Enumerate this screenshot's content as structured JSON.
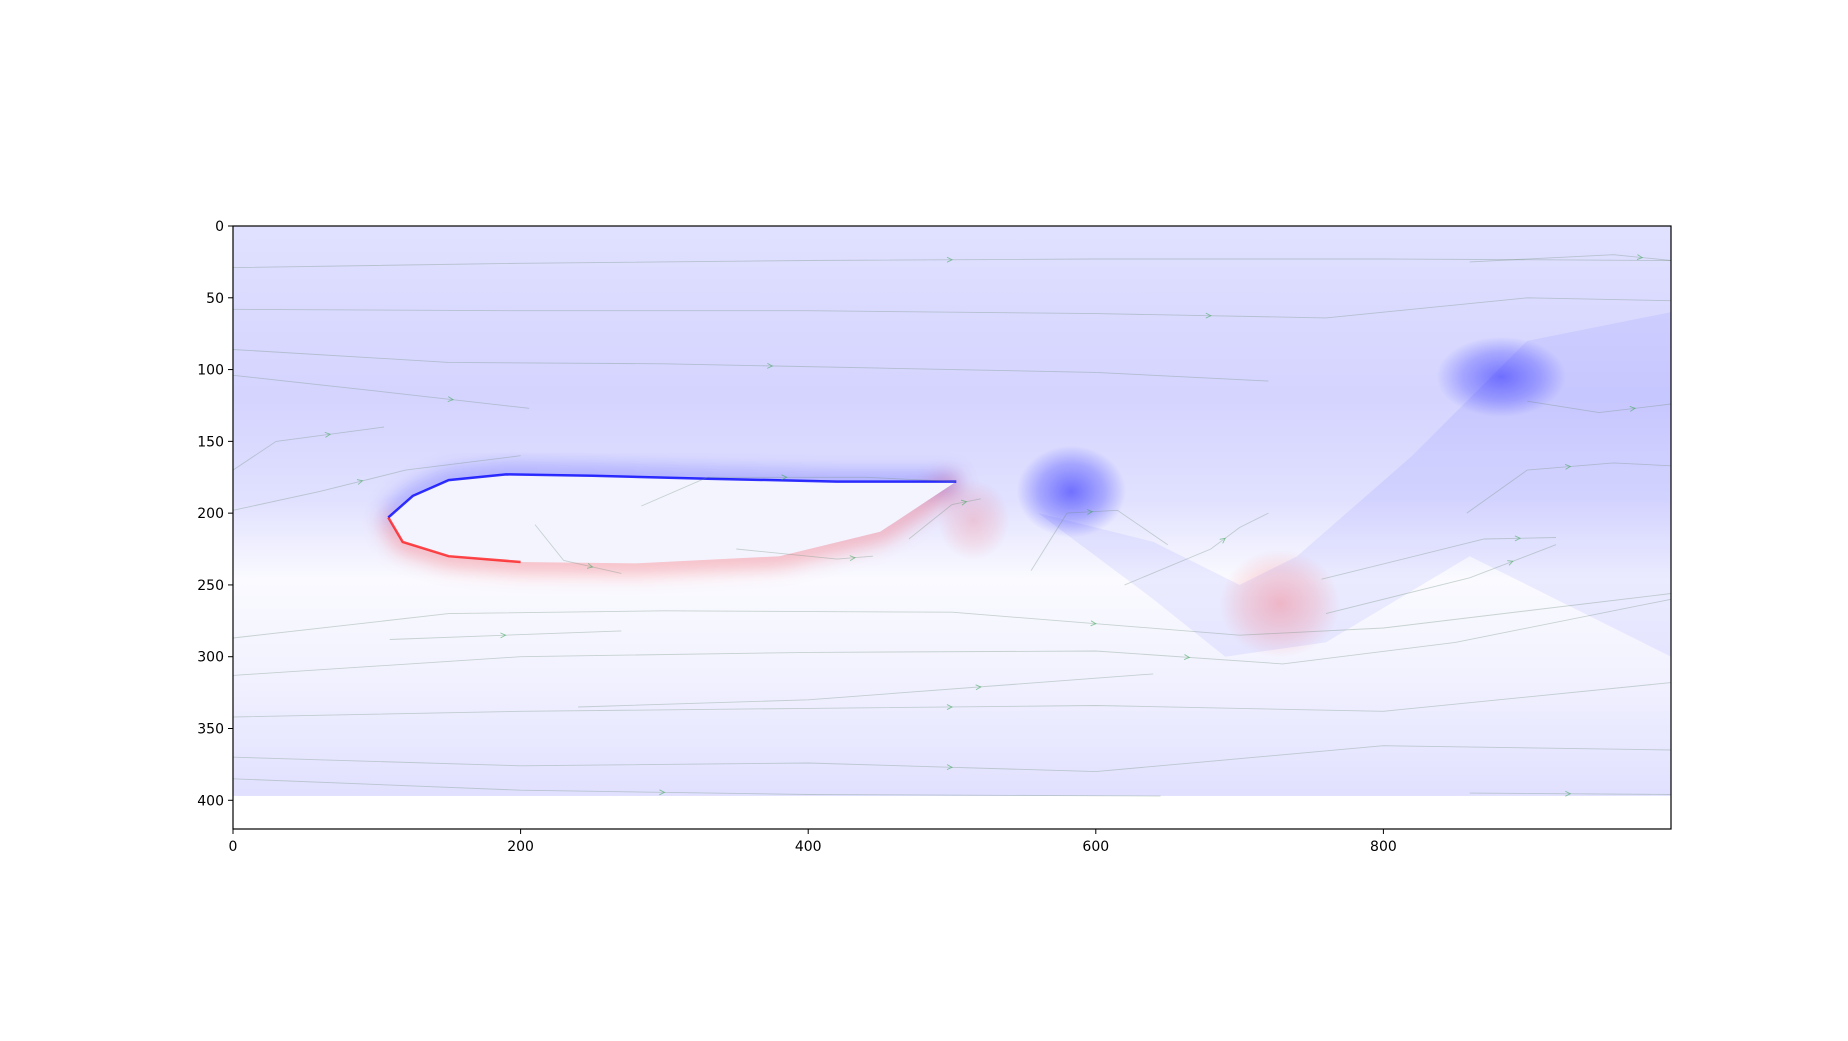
{
  "chart_data": {
    "type": "heatmap",
    "title": "",
    "xlabel": "",
    "ylabel": "",
    "xlim": [
      0,
      1000
    ],
    "ylim": [
      420,
      0
    ],
    "image_extent": {
      "x": [
        0,
        1000
      ],
      "y": [
        0,
        397
      ]
    },
    "x_ticks": [
      0,
      200,
      400,
      600,
      800
    ],
    "x_tick_labels": [
      "0",
      "200",
      "400",
      "600",
      "800"
    ],
    "y_ticks": [
      0,
      50,
      100,
      150,
      200,
      250,
      300,
      350,
      400
    ],
    "y_tick_labels": [
      "0",
      "50",
      "100",
      "150",
      "200",
      "250",
      "300",
      "350",
      "400"
    ],
    "grid": false,
    "legend": "none",
    "colormap": {
      "negative": "#0000ff",
      "zero": "#ffffff",
      "positive": "#ff0000"
    },
    "streamline_color": "#3fa85a",
    "field_features": [
      {
        "kind": "wall-band",
        "sign": "negative",
        "x": 0,
        "y": 0,
        "rx": 0,
        "ry": 0,
        "polyline": [
          [
            0,
            0
          ]
        ],
        "points": [
          [
            0,
            0
          ],
          [
            1000,
            0
          ],
          [
            1000,
            100
          ],
          [
            0,
            100
          ]
        ],
        "strength": 0.12
      },
      {
        "kind": "vortex",
        "sign": "negative",
        "x": 882,
        "y": 105,
        "rx": 45,
        "ry": 28,
        "strength": 0.45
      },
      {
        "kind": "vortex",
        "sign": "negative",
        "x": 583,
        "y": 185,
        "rx": 38,
        "ry": 32,
        "strength": 0.5
      },
      {
        "kind": "vortex",
        "sign": "positive",
        "x": 728,
        "y": 263,
        "rx": 42,
        "ry": 38,
        "strength": 0.22
      },
      {
        "kind": "vortex",
        "sign": "positive",
        "x": 515,
        "y": 205,
        "rx": 25,
        "ry": 28,
        "strength": 0.15
      }
    ],
    "body": {
      "leading_edge": [
        108,
        203
      ],
      "trailing_edge": [
        503,
        178
      ],
      "upper_surface": [
        [
          108,
          203
        ],
        [
          125,
          188
        ],
        [
          150,
          177
        ],
        [
          190,
          173
        ],
        [
          250,
          174
        ],
        [
          330,
          176
        ],
        [
          420,
          178
        ],
        [
          503,
          178
        ]
      ],
      "lower_surface": [
        [
          108,
          203
        ],
        [
          118,
          220
        ],
        [
          150,
          230
        ],
        [
          200,
          234
        ],
        [
          280,
          235
        ],
        [
          380,
          230
        ],
        [
          450,
          213
        ],
        [
          503,
          178
        ]
      ],
      "upper_shear": "negative",
      "lower_shear": "positive"
    },
    "streamlines": [
      [
        [
          0,
          29
        ],
        [
          200,
          26
        ],
        [
          400,
          24
        ],
        [
          600,
          23
        ],
        [
          800,
          23
        ],
        [
          1000,
          24
        ]
      ],
      [
        [
          0,
          58
        ],
        [
          200,
          59
        ],
        [
          400,
          59
        ],
        [
          600,
          61
        ],
        [
          760,
          64
        ],
        [
          900,
          50
        ],
        [
          1000,
          52
        ]
      ],
      [
        [
          0,
          86
        ],
        [
          150,
          95
        ],
        [
          300,
          96
        ],
        [
          450,
          99
        ],
        [
          600,
          102
        ],
        [
          720,
          108
        ]
      ],
      [
        [
          0,
          104
        ],
        [
          100,
          115
        ],
        [
          206,
          127
        ]
      ],
      [
        [
          0,
          170
        ],
        [
          30,
          150
        ],
        [
          105,
          140
        ]
      ],
      [
        [
          0,
          198
        ],
        [
          60,
          185
        ],
        [
          120,
          170
        ],
        [
          200,
          160
        ]
      ],
      [
        [
          0,
          287
        ],
        [
          150,
          270
        ],
        [
          300,
          268
        ],
        [
          500,
          269
        ],
        [
          700,
          285
        ],
        [
          800,
          280
        ],
        [
          1000,
          256
        ]
      ],
      [
        [
          0,
          313
        ],
        [
          200,
          300
        ],
        [
          400,
          297
        ],
        [
          600,
          296
        ],
        [
          730,
          305
        ],
        [
          850,
          290
        ],
        [
          1000,
          260
        ]
      ],
      [
        [
          0,
          342
        ],
        [
          200,
          338
        ],
        [
          400,
          336
        ],
        [
          600,
          334
        ],
        [
          800,
          338
        ],
        [
          1000,
          318
        ]
      ],
      [
        [
          0,
          370
        ],
        [
          200,
          376
        ],
        [
          400,
          374
        ],
        [
          600,
          380
        ],
        [
          800,
          362
        ],
        [
          1000,
          365
        ]
      ],
      [
        [
          0,
          385
        ],
        [
          200,
          393
        ],
        [
          400,
          396
        ],
        [
          645,
          397
        ]
      ],
      [
        [
          109,
          288
        ],
        [
          270,
          282
        ]
      ],
      [
        [
          240,
          335
        ],
        [
          400,
          330
        ],
        [
          640,
          312
        ]
      ],
      [
        [
          284,
          195
        ],
        [
          330,
          175
        ],
        [
          440,
          175
        ],
        [
          503,
          178
        ]
      ],
      [
        [
          350,
          225
        ],
        [
          420,
          232
        ],
        [
          445,
          230
        ]
      ],
      [
        [
          210,
          208
        ],
        [
          230,
          233
        ],
        [
          270,
          242
        ]
      ],
      [
        [
          470,
          218
        ],
        [
          500,
          194
        ],
        [
          520,
          190
        ]
      ],
      [
        [
          555,
          240
        ],
        [
          580,
          200
        ],
        [
          615,
          198
        ],
        [
          650,
          222
        ]
      ],
      [
        [
          620,
          250
        ],
        [
          680,
          225
        ],
        [
          700,
          210
        ],
        [
          720,
          200
        ]
      ],
      [
        [
          757,
          246
        ],
        [
          870,
          218
        ],
        [
          920,
          217
        ]
      ],
      [
        [
          760,
          270
        ],
        [
          860,
          245
        ],
        [
          920,
          222
        ]
      ],
      [
        [
          858,
          200
        ],
        [
          900,
          170
        ],
        [
          960,
          165
        ],
        [
          1000,
          167
        ]
      ],
      [
        [
          860,
          25
        ],
        [
          960,
          20
        ],
        [
          1000,
          24
        ]
      ],
      [
        [
          900,
          122
        ],
        [
          950,
          130
        ],
        [
          1000,
          124
        ]
      ],
      [
        [
          860,
          395
        ],
        [
          1000,
          396
        ]
      ]
    ]
  }
}
